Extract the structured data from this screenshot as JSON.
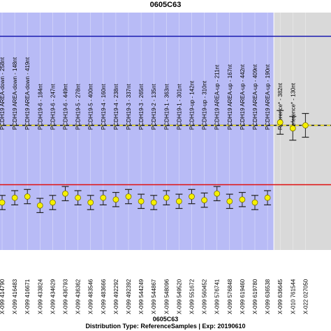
{
  "chart_data": {
    "type": "scatter",
    "title": "0605C63",
    "footer_title": "0605C63",
    "footer_info": "Distribution Type: ReferenceSamples | Exp: 20190610",
    "colors": {
      "sample_bg": "#b8bbf6",
      "reference_bg": "#d9d9d9",
      "upper_line": "#1c1cb0",
      "lower_line": "#e01010",
      "mid_line": "#111111",
      "mid_dash": "#f0e010",
      "point": "#f5f000",
      "error_bar": "#222222"
    },
    "y_levels": {
      "upper": 2.5,
      "mid": 1.0,
      "lower": 0.0
    },
    "ylim": [
      -1.1,
      2.9
    ],
    "points": [
      {
        "probe": "PCDH19 AREA-down - 258nt",
        "sample": "X-099 414790",
        "value": -0.3,
        "err": 0.12,
        "group": "sample"
      },
      {
        "probe": "PCDH19 AREA-down - 148nt",
        "sample": "X-099 416483",
        "value": -0.22,
        "err": 0.12,
        "group": "sample"
      },
      {
        "probe": "PCDH19 AREA-down - 419nt",
        "sample": "X-099 416671",
        "value": -0.2,
        "err": 0.12,
        "group": "sample"
      },
      {
        "probe": "PCDH19-6 - 184nt",
        "sample": "X-099 433824",
        "value": -0.35,
        "err": 0.12,
        "group": "sample"
      },
      {
        "probe": "PCDH19-6 - 247nt",
        "sample": "X-099 434629",
        "value": -0.3,
        "err": 0.12,
        "group": "sample"
      },
      {
        "probe": "PCDH19-6 - 449nt",
        "sample": "X-099 436793",
        "value": -0.15,
        "err": 0.12,
        "group": "sample"
      },
      {
        "probe": "PCDH19-5 - 278nt",
        "sample": "X-099 436362",
        "value": -0.22,
        "err": 0.12,
        "group": "sample"
      },
      {
        "probe": "PCDH19-5 - 400nt",
        "sample": "X-099 483546",
        "value": -0.3,
        "err": 0.12,
        "group": "sample"
      },
      {
        "probe": "PCDH19-4 - 160nt",
        "sample": "X-099 483666",
        "value": -0.22,
        "err": 0.12,
        "group": "sample"
      },
      {
        "probe": "PCDH19-4 - 238nt",
        "sample": "X-099 492292",
        "value": -0.25,
        "err": 0.12,
        "group": "sample"
      },
      {
        "probe": "PCDH19-3 - 337nt",
        "sample": "X-099 492392",
        "value": -0.2,
        "err": 0.12,
        "group": "sample"
      },
      {
        "probe": "PCDH19-3 - 265nt",
        "sample": "X-099 544249",
        "value": -0.28,
        "err": 0.12,
        "group": "sample"
      },
      {
        "probe": "PCDH19-2 - 135nt",
        "sample": "X-099 544867",
        "value": -0.3,
        "err": 0.12,
        "group": "sample"
      },
      {
        "probe": "PCDH19-1 - 363nt",
        "sample": "X-099 548096",
        "value": -0.22,
        "err": 0.12,
        "group": "sample"
      },
      {
        "probe": "PCDH19-1 - 301nt",
        "sample": "X-099 549520",
        "value": -0.28,
        "err": 0.12,
        "group": "sample"
      },
      {
        "probe": "PCDH19-up - 142nt",
        "sample": "X-099 551672",
        "value": -0.2,
        "err": 0.12,
        "group": "sample"
      },
      {
        "probe": "PCDH19-up - 310nt",
        "sample": "X-099 560452",
        "value": -0.26,
        "err": 0.12,
        "group": "sample"
      },
      {
        "probe": "PCDH19 AREA-up - 211nt",
        "sample": "X-099 576741",
        "value": -0.15,
        "err": 0.12,
        "group": "sample"
      },
      {
        "probe": "PCDH19 AREA-up - 167nt",
        "sample": "X-099 576848",
        "value": -0.28,
        "err": 0.12,
        "group": "sample"
      },
      {
        "probe": "PCDH19 AREA-up - 442nt",
        "sample": "X-099 619460",
        "value": -0.25,
        "err": 0.12,
        "group": "sample"
      },
      {
        "probe": "PCDH19 AREA-up - 409nt",
        "sample": "X-099 619780",
        "value": -0.3,
        "err": 0.12,
        "group": "sample"
      },
      {
        "probe": "PCDH19 AREA-up - 190nt",
        "sample": "X-099 636538",
        "value": -0.22,
        "err": 0.12,
        "group": "sample"
      },
      {
        "probe": "Reference* - 382nt",
        "sample": "X-099 636645",
        "value": 1.05,
        "err": 0.2,
        "group": "reference"
      },
      {
        "probe": "Reference* - 130nt",
        "sample": "X-010 761544",
        "value": 0.95,
        "err": 0.2,
        "group": "reference"
      },
      {
        "probe": "",
        "sample": "X-022 027050",
        "value": 1.0,
        "err": 0.2,
        "group": "reference"
      }
    ]
  }
}
